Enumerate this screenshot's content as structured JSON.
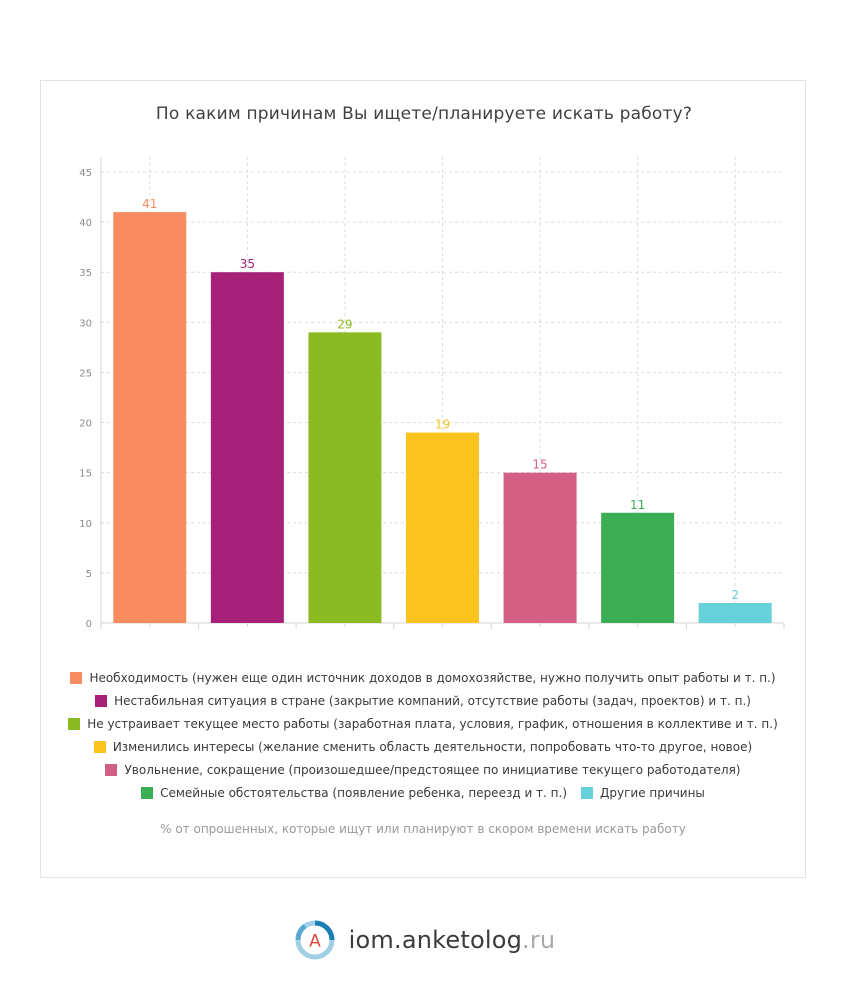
{
  "chart_data": {
    "type": "bar",
    "title": "По каким причинам Вы ищете/планируете искать работу?",
    "xlabel": "",
    "ylabel": "",
    "ylim": [
      0,
      45
    ],
    "yticks": [
      0,
      5,
      10,
      15,
      20,
      25,
      30,
      35,
      40,
      45
    ],
    "grid": true,
    "legend_position": "bottom",
    "categories": [
      "Необходимость (нужен еще один источник доходов в домохозяйстве, нужно получить опыт работы и т. п.)",
      "Нестабильная ситуация в стране (закрытие компаний, отсутствие работы (задач, проектов) и т. п.)",
      "Не устраивает текущее место работы (заработная плата, условия, график, отношения в коллективе и т. п.)",
      "Изменились интересы (желание сменить область деятельности, попробовать что-то другое, новое)",
      "Увольнение, сокращение (произошедшее/предстоящее по инициативе текущего работодателя)",
      "Семейные обстоятельства (появление ребенка, переезд и т. п.)",
      "Другие причины"
    ],
    "values": [
      41,
      35,
      29,
      19,
      15,
      11,
      2
    ],
    "colors": [
      "#f78c60",
      "#a62178",
      "#8cba23",
      "#fac31e",
      "#d45f84",
      "#3aad55",
      "#66d1d9"
    ],
    "footnote": "% от опрошенных, которые ищут или планируют в скором времени искать работу"
  },
  "brand": {
    "logo_letter": "A",
    "name": "iom.anketolog",
    "tld": ".ru"
  }
}
